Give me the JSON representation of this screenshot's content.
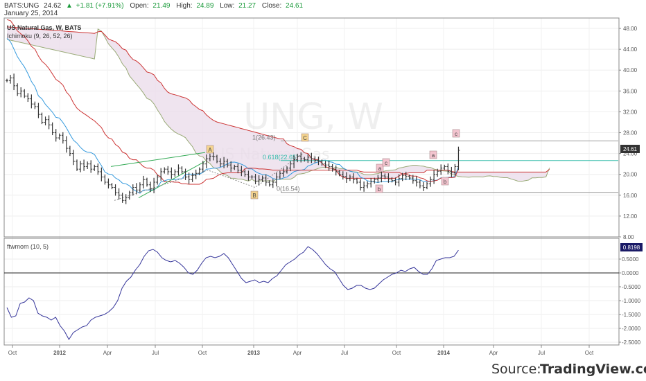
{
  "header": {
    "symbol": "BATS:UNG",
    "last": "24.62",
    "change": "+1.81 (+7.91%)",
    "open_label": "Open:",
    "open": "21.49",
    "high_label": "High:",
    "high": "24.89",
    "low_label": "Low:",
    "low": "21.27",
    "close_label": "Close:",
    "close": "24.61",
    "date": "January 25, 2014",
    "title": "US Natural Gas, W, BATS",
    "indicator": "Ichimoku (9, 26, 52, 26)"
  },
  "watermark": {
    "symbol": "UNG, W",
    "name": "US Natural Gas"
  },
  "price_label": "24.61",
  "oscillator": {
    "name": "ftwmom (10, 5)",
    "value_label": "0.8198"
  },
  "source": {
    "prefix": "Source:",
    "brand": "TradingView.com"
  },
  "colors": {
    "candle": "#333333",
    "tenkan": "#3399dd",
    "kijun": "#cc3333",
    "cloud": "#e9dbe9",
    "span_b": "#99aa77",
    "osc": "#333399",
    "fib": "#33bbaa",
    "trend": "#33aa55",
    "marker_orange": "#f5d48f",
    "marker_pink": "#f3c4cf"
  },
  "chart_data": [
    {
      "type": "candlestick",
      "title": "US Natural Gas, W, BATS",
      "y_axis_ticks": [
        "48.00",
        "44.00",
        "40.00",
        "36.00",
        "32.00",
        "28.00",
        "24.00",
        "20.00",
        "16.00",
        "12.00",
        "8.00"
      ],
      "ylim": [
        8,
        50
      ],
      "x_ticks": [
        "Oct",
        "2012",
        "Apr",
        "Jul",
        "Oct",
        "2013",
        "Apr",
        "Jul",
        "Oct",
        "2014",
        "Apr",
        "Jul",
        "Oct"
      ],
      "closes": [
        38,
        38.5,
        37,
        35.5,
        36,
        35,
        34.5,
        33.5,
        33,
        31.5,
        30,
        30.5,
        29.5,
        28,
        27,
        27.5,
        26.5,
        25,
        24,
        22.5,
        21,
        22,
        21.5,
        22,
        21,
        21.5,
        20.5,
        19.5,
        18.5,
        18,
        17.5,
        16.5,
        16,
        15,
        15.5,
        16.5,
        17.5,
        17,
        18,
        19,
        18,
        17.2,
        18.5,
        19.5,
        20.5,
        21,
        20.5,
        20,
        20.5,
        21.2,
        20.5,
        19.5,
        19,
        19.8,
        20.2,
        21,
        22,
        23,
        23.5,
        23.4,
        22.5,
        22,
        22.5,
        21.8,
        21.2,
        21.5,
        20.8,
        20.5,
        20,
        19.5,
        19.5,
        18.7,
        19,
        19.3,
        18.5,
        18,
        18.5,
        19.5,
        20.2,
        20.5,
        21.2,
        22,
        22.8,
        23.5,
        23,
        22.8,
        23.3,
        23,
        22.7,
        22.5,
        22,
        21.8,
        21.5,
        21,
        20.5,
        20,
        19.6,
        19.2,
        19.5,
        19,
        18.5,
        17.5,
        17.8,
        18.2,
        18.6,
        19,
        19.3,
        19.7,
        19.5,
        19.1,
        18.8,
        18.5,
        19.2,
        19.8,
        19.6,
        19.3,
        18.8,
        18.5,
        17.8,
        17.5,
        18.2,
        19,
        20,
        20.6,
        21.2,
        21.5,
        20.6,
        20.3,
        21.5,
        24.61
      ],
      "overlays": [
        "Tenkan-sen",
        "Kijun-sen",
        "Senkou Span A",
        "Senkou Span B"
      ],
      "annotations": [
        {
          "label": "1(26.43)",
          "price": 26.43
        },
        {
          "label": "0.618(22.65)",
          "price": 22.65
        },
        {
          "label": "0(16.54)",
          "price": 16.54
        },
        {
          "label": "A"
        },
        {
          "label": "B"
        },
        {
          "label": "C"
        },
        {
          "label": "a"
        },
        {
          "label": "b"
        },
        {
          "label": "c"
        },
        {
          "label": "a"
        },
        {
          "label": "b"
        },
        {
          "label": "c"
        }
      ]
    },
    {
      "type": "line",
      "name": "ftwmom (10, 5)",
      "y_axis_ticks": [
        "0.5000",
        "0.0000",
        "-0.5000",
        "-1.0000",
        "-1.5000",
        "-2.0000",
        "-2.5000"
      ],
      "ylim": [
        -2.6,
        1.25
      ],
      "last_value": 0.8198,
      "values": [
        -1.25,
        -1.6,
        -1.55,
        -1.1,
        -1.05,
        -0.9,
        -1.0,
        -1.45,
        -1.55,
        -1.6,
        -1.7,
        -1.6,
        -1.9,
        -2.1,
        -2.4,
        -2.15,
        -2.05,
        -1.95,
        -1.9,
        -1.7,
        -1.6,
        -1.55,
        -1.5,
        -1.4,
        -1.25,
        -1.0,
        -0.55,
        -0.3,
        -0.15,
        0.1,
        0.3,
        0.6,
        0.8,
        0.85,
        0.75,
        0.55,
        0.45,
        0.4,
        0.45,
        0.35,
        0.2,
        0.0,
        -0.05,
        0.1,
        0.35,
        0.55,
        0.6,
        0.55,
        0.6,
        0.7,
        0.55,
        0.3,
        0.05,
        -0.2,
        -0.35,
        -0.3,
        -0.25,
        -0.35,
        -0.3,
        -0.35,
        -0.2,
        -0.1,
        0.1,
        0.3,
        0.4,
        0.5,
        0.65,
        0.75,
        0.95,
        0.85,
        0.7,
        0.5,
        0.3,
        0.15,
        0.05,
        -0.2,
        -0.45,
        -0.6,
        -0.55,
        -0.45,
        -0.45,
        -0.55,
        -0.6,
        -0.55,
        -0.4,
        -0.25,
        -0.15,
        -0.05,
        0.0,
        0.1,
        0.05,
        0.15,
        0.2,
        0.05,
        -0.05,
        -0.05,
        0.15,
        0.45,
        0.5,
        0.55,
        0.55,
        0.6,
        0.82
      ]
    }
  ]
}
